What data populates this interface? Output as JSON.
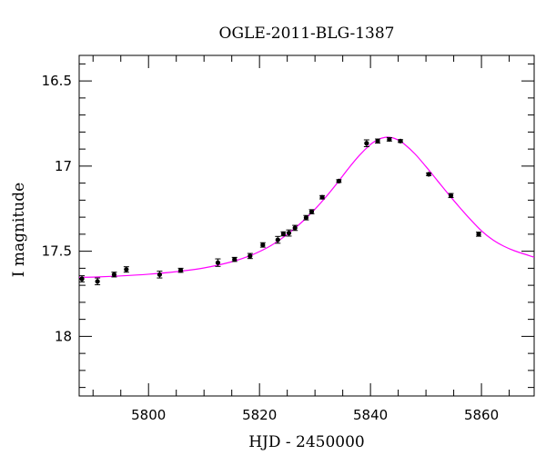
{
  "chart_data": {
    "type": "scatter",
    "title": "OGLE-2011-BLG-1387",
    "xlabel": "HJD - 2450000",
    "ylabel": "I magnitude",
    "xlim": [
      5787.5,
      5869.5
    ],
    "ylim": [
      18.35,
      16.35
    ],
    "y_inverted": true,
    "grid": false,
    "x_major_ticks": [
      5800,
      5820,
      5840,
      5860
    ],
    "x_tick_labels": [
      "5800",
      "5820",
      "5840",
      "5860"
    ],
    "y_major_ticks": [
      16.5,
      17,
      17.5,
      18
    ],
    "y_tick_labels": [
      "16.5",
      "17",
      "17.5",
      "18"
    ],
    "colors": {
      "data": "#000000",
      "model": "#ff00ff"
    },
    "series": [
      {
        "kind": "points_with_errorbars",
        "x": [
          5788.0,
          5790.8,
          5793.8,
          5796.0,
          5802.0,
          5805.8,
          5812.5,
          5815.5,
          5818.3,
          5820.6,
          5823.3,
          5824.3,
          5825.3,
          5826.4,
          5828.4,
          5829.4,
          5831.3,
          5834.3,
          5839.3,
          5841.3,
          5843.4,
          5845.4,
          5850.5,
          5854.5,
          5859.5
        ],
        "y": [
          17.662,
          17.677,
          17.637,
          17.607,
          17.637,
          17.612,
          17.567,
          17.548,
          17.528,
          17.463,
          17.433,
          17.398,
          17.393,
          17.363,
          17.303,
          17.268,
          17.183,
          17.088,
          16.866,
          16.853,
          16.843,
          16.853,
          17.048,
          17.173,
          17.4
        ],
        "err": [
          0.018,
          0.02,
          0.014,
          0.016,
          0.02,
          0.012,
          0.022,
          0.012,
          0.015,
          0.013,
          0.02,
          0.012,
          0.018,
          0.015,
          0.013,
          0.012,
          0.01,
          0.008,
          0.02,
          0.012,
          0.01,
          0.008,
          0.008,
          0.012,
          0.012
        ]
      },
      {
        "kind": "model_curve",
        "x": [
          5787.5,
          5790,
          5795,
          5800,
          5805,
          5810,
          5815,
          5818,
          5820,
          5822,
          5824,
          5826,
          5828,
          5830,
          5832,
          5834,
          5836,
          5838,
          5840,
          5841,
          5842,
          5843,
          5844,
          5845,
          5846,
          5848,
          5850,
          5852,
          5854,
          5856,
          5858,
          5860,
          5862,
          5864,
          5866,
          5869.5
        ],
        "y": [
          17.653,
          17.652,
          17.645,
          17.635,
          17.62,
          17.598,
          17.562,
          17.53,
          17.502,
          17.468,
          17.425,
          17.375,
          17.318,
          17.253,
          17.18,
          17.1,
          17.015,
          16.937,
          16.873,
          16.851,
          16.836,
          16.83,
          16.834,
          16.847,
          16.868,
          16.928,
          17.003,
          17.083,
          17.163,
          17.24,
          17.313,
          17.38,
          17.432,
          17.47,
          17.498,
          17.535
        ]
      }
    ]
  }
}
